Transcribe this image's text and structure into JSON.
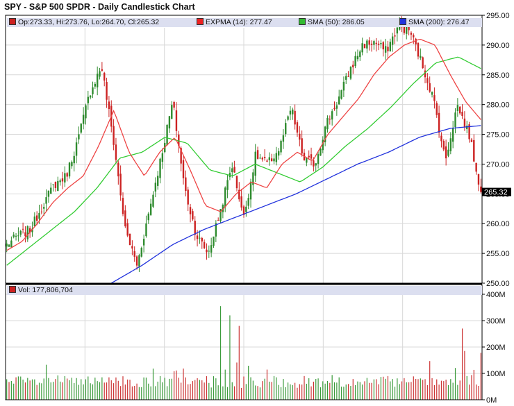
{
  "title": "SPY - S&P 500 SPDR - Daily Candlestick Chart",
  "legend": {
    "ohlc": "Op:273.33, Hi:273.76, Lo:264.70, Cl:265.32",
    "expma": "EXPMA (14): 277.47",
    "sma50": "SMA (50): 286.05",
    "sma200": "SMA (200): 276.47",
    "volume": "Vol: 177,806,704"
  },
  "last_price_label": "265.32",
  "colors": {
    "up": "#2e8b2e",
    "down": "#cc2222",
    "expma": "#ee4444",
    "sma50": "#33cc33",
    "sma200": "#2233dd",
    "volume_up": "#3a9a3a",
    "volume_down": "#cc3333",
    "grid": "#d8d8d8",
    "legend_bg": "#dcdff0"
  },
  "chart_data": [
    {
      "type": "candlestick",
      "title": "SPY - S&P 500 SPDR - Daily Candlestick Chart",
      "ylim": [
        250,
        295
      ],
      "y_ticks": [
        "295.00",
        "290.00",
        "285.00",
        "280.00",
        "275.00",
        "270.00",
        "265.00",
        "260.00",
        "255.00",
        "250.00"
      ],
      "grid": true,
      "axis_side": "right",
      "series_key_points": [
        {
          "name": "Price (close)",
          "values": [
            256.5,
            258.0,
            259.0,
            263.0,
            266.5,
            268.0,
            274.0,
            282.0,
            286.5,
            274.0,
            259.0,
            253.0,
            262.0,
            271.0,
            280.5,
            266.0,
            258.0,
            255.0,
            262.0,
            270.0,
            261.0,
            271.5,
            270.0,
            272.5,
            279.5,
            271.0,
            270.0,
            277.0,
            281.0,
            286.0,
            290.0,
            290.5,
            289.0,
            293.0,
            292.5,
            287.0,
            281.0,
            270.5,
            280.0,
            275.0,
            265.32
          ]
        },
        {
          "name": "EXPMA (14)",
          "values": [
            255.5,
            257.0,
            260.0,
            263.5,
            266.0,
            268.0,
            273.0,
            279.0,
            272.0,
            268.0,
            272.0,
            274.5,
            269.0,
            263.0,
            262.0,
            265.0,
            267.0,
            266.0,
            270.0,
            272.0,
            270.5,
            275.0,
            278.0,
            281.0,
            285.0,
            288.0,
            290.0,
            291.0,
            290.0,
            285.0,
            280.5,
            277.47
          ]
        },
        {
          "name": "SMA (50)",
          "values": [
            253.0,
            256.0,
            259.0,
            262.0,
            266.0,
            271.0,
            272.0,
            274.5,
            273.5,
            269.0,
            268.0,
            270.0,
            268.5,
            267.0,
            269.5,
            273.0,
            276.0,
            279.5,
            283.5,
            287.0,
            288.0,
            286.05
          ]
        },
        {
          "name": "SMA (200)",
          "values": [
            250.0,
            253.0,
            256.5,
            259.0,
            261.0,
            263.0,
            265.0,
            267.5,
            270.0,
            272.0,
            274.5,
            276.0,
            276.47
          ]
        }
      ],
      "last_close": 265.32
    },
    {
      "type": "bar",
      "title": "Volume",
      "ylim": [
        0,
        400
      ],
      "y_unit": "M",
      "y_ticks": [
        "400M",
        "300M",
        "200M",
        "100M",
        "0M"
      ],
      "notable_peaks_millions": [
        355,
        320,
        280,
        270,
        185,
        177.8
      ],
      "last_value": 177806704
    }
  ]
}
